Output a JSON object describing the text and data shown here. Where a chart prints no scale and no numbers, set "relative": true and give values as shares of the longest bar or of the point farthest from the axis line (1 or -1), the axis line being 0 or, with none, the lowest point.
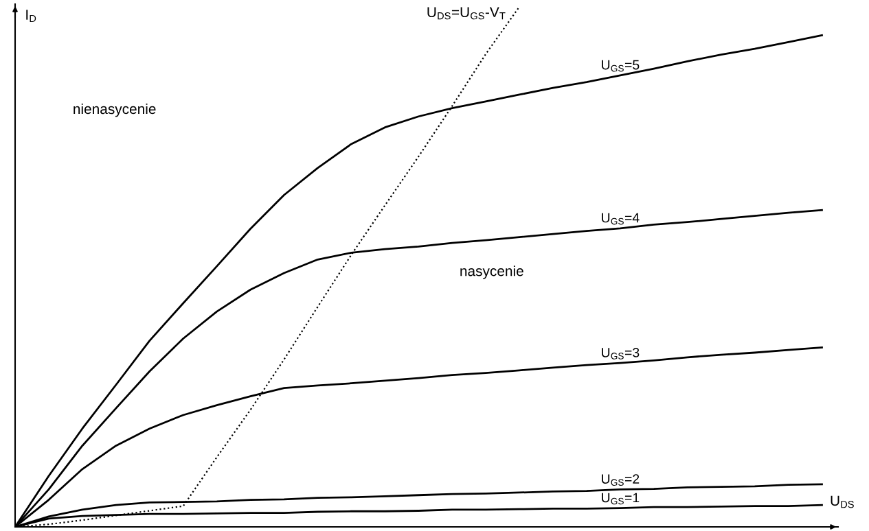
{
  "chart_data": {
    "type": "line",
    "relative": true,
    "xlabel": "U$_{DS}$",
    "ylabel": "I$_{D}$",
    "legend": false,
    "marker": "none",
    "categories": [
      null,
      null,
      null,
      null,
      null,
      null,
      null,
      null,
      null,
      null,
      null,
      null,
      null,
      null,
      null,
      null,
      null,
      null,
      null,
      null,
      null,
      null,
      null,
      null,
      null
    ],
    "series": [
      {
        "name": "U$_{GS}$=1",
        "color": "#000000",
        "line_style": "solid",
        "values": [
          0,
          0.016,
          0.021,
          0.023,
          0.025,
          0.025,
          0.026,
          0.027,
          0.027,
          0.029,
          0.03,
          0.03,
          0.031,
          0.033,
          0.033,
          0.034,
          0.035,
          0.035,
          0.036,
          0.038,
          0.038,
          0.039,
          0.04,
          0.04,
          0.042
        ]
      },
      {
        "name": "U$_{GS}$=2",
        "color": "#000000",
        "line_style": "solid",
        "values": [
          0,
          0.02,
          0.033,
          0.042,
          0.047,
          0.048,
          0.049,
          0.052,
          0.053,
          0.056,
          0.057,
          0.059,
          0.061,
          0.063,
          0.064,
          0.066,
          0.068,
          0.069,
          0.072,
          0.073,
          0.076,
          0.077,
          0.078,
          0.081,
          0.082
        ]
      },
      {
        "name": "U$_{GS}$=3",
        "color": "#000000",
        "line_style": "solid",
        "values": [
          0,
          0.052,
          0.111,
          0.156,
          0.189,
          0.215,
          0.234,
          0.251,
          0.267,
          0.272,
          0.276,
          0.281,
          0.286,
          0.292,
          0.296,
          0.301,
          0.306,
          0.311,
          0.315,
          0.32,
          0.326,
          0.331,
          0.335,
          0.34,
          0.345
        ]
      },
      {
        "name": "U$_{GS}$=4",
        "color": "#000000",
        "line_style": "solid",
        "values": [
          0,
          0.072,
          0.156,
          0.228,
          0.299,
          0.362,
          0.414,
          0.456,
          0.488,
          0.514,
          0.527,
          0.534,
          0.539,
          0.546,
          0.551,
          0.557,
          0.563,
          0.569,
          0.574,
          0.581,
          0.586,
          0.592,
          0.598,
          0.604,
          0.609
        ]
      },
      {
        "name": "U$_{GS}$=5",
        "color": "#000000",
        "line_style": "solid",
        "values": [
          0,
          0.098,
          0.189,
          0.273,
          0.358,
          0.43,
          0.501,
          0.573,
          0.638,
          0.69,
          0.736,
          0.768,
          0.789,
          0.805,
          0.818,
          0.831,
          0.844,
          0.855,
          0.868,
          0.881,
          0.895,
          0.908,
          0.919,
          0.932,
          0.945
        ]
      },
      {
        "name": "U$_{DS}$=U$_{GS}$-V$_{T}$",
        "color": "#000000",
        "line_style": "dotted",
        "values": [
          0,
          0.005,
          0.013,
          0.022,
          0.031,
          0.04,
          0.134,
          0.225,
          0.322,
          0.423,
          0.523,
          0.618,
          0.712,
          0.809,
          0.909,
          1,
          null,
          null,
          null,
          null,
          null,
          null,
          null,
          null,
          null
        ]
      }
    ],
    "annotations": [
      "nienasycenie",
      "nasycenie"
    ]
  }
}
